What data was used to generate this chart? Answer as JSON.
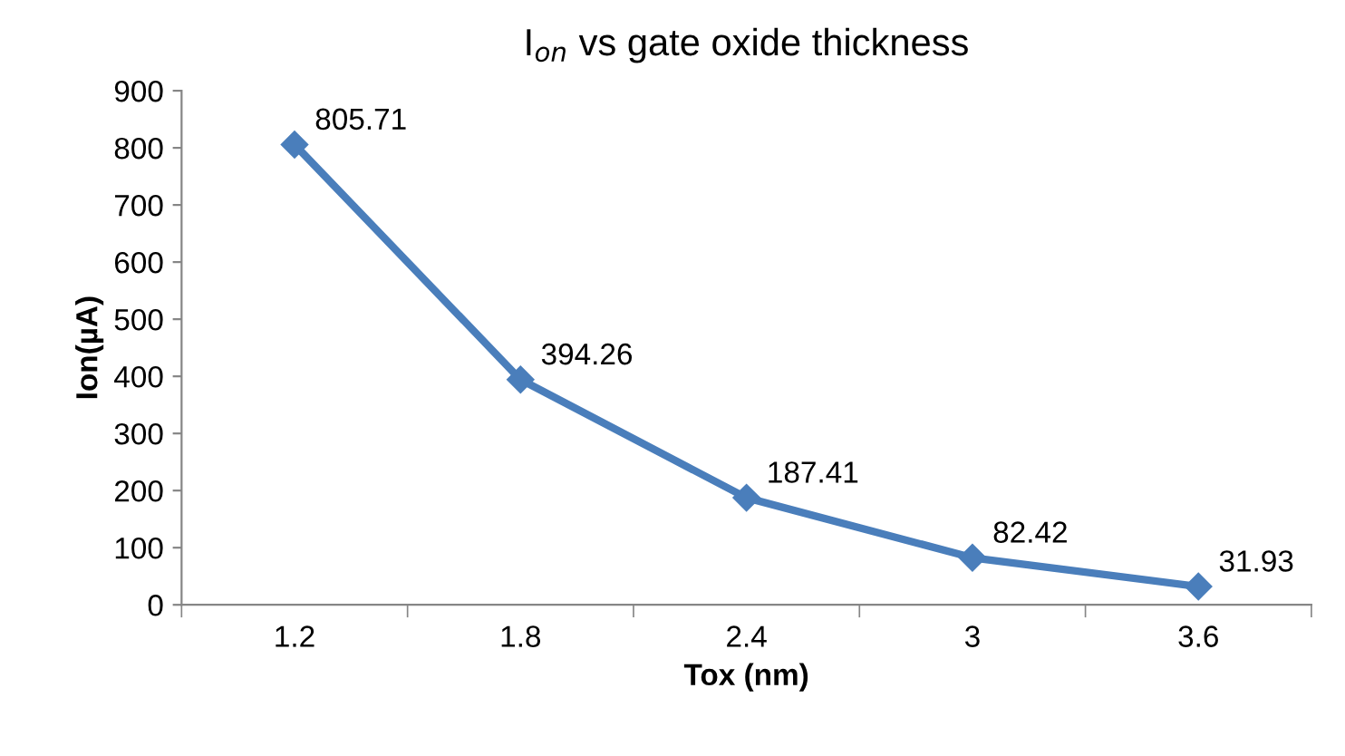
{
  "chart_data": {
    "type": "line",
    "title": "I$_{on}$ vs gate oxide thickness",
    "xlabel": "Tox (nm)",
    "ylabel": "Ion(µA)",
    "categories": [
      "1.2",
      "1.8",
      "2.4",
      "3",
      "3.6"
    ],
    "series": [
      {
        "color": "#4a7ebb",
        "values": [
          805.71,
          394.26,
          187.41,
          82.42,
          31.93
        ]
      }
    ],
    "ylim": [
      0,
      900
    ],
    "yticks": [
      0,
      100,
      200,
      300,
      400,
      500,
      600,
      700,
      800,
      900
    ],
    "data_labels": true,
    "marker": "diamond",
    "line_style": "solid",
    "grid": false,
    "legend": false
  }
}
